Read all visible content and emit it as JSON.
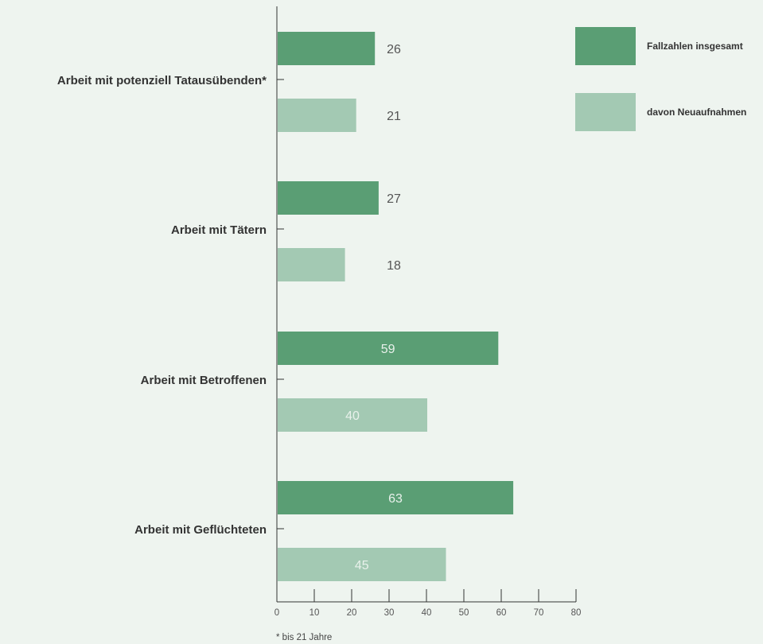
{
  "chart_data": {
    "type": "bar",
    "orientation": "horizontal",
    "categories": [
      "Arbeit mit potenziell Tatausübenden*",
      "Arbeit mit Tätern",
      "Arbeit mit Betroffenen",
      "Arbeit mit Geflüchteten"
    ],
    "series": [
      {
        "name": "Fallzahlen insgesamt",
        "color": "#5a9e74",
        "values": [
          26,
          27,
          59,
          63
        ]
      },
      {
        "name": "davon Neuaufnahmen",
        "color": "#a3c9b3",
        "values": [
          21,
          18,
          40,
          45
        ]
      }
    ],
    "xlim": [
      0,
      80
    ],
    "xticks": [
      0,
      10,
      20,
      30,
      40,
      50,
      60,
      70,
      80
    ],
    "grid": false,
    "legend_position": "top-right",
    "footnote": "*   bis 21 Jahre",
    "value_label_colors": {
      "outside": "#555555",
      "inside": "#e8f1eb"
    }
  }
}
